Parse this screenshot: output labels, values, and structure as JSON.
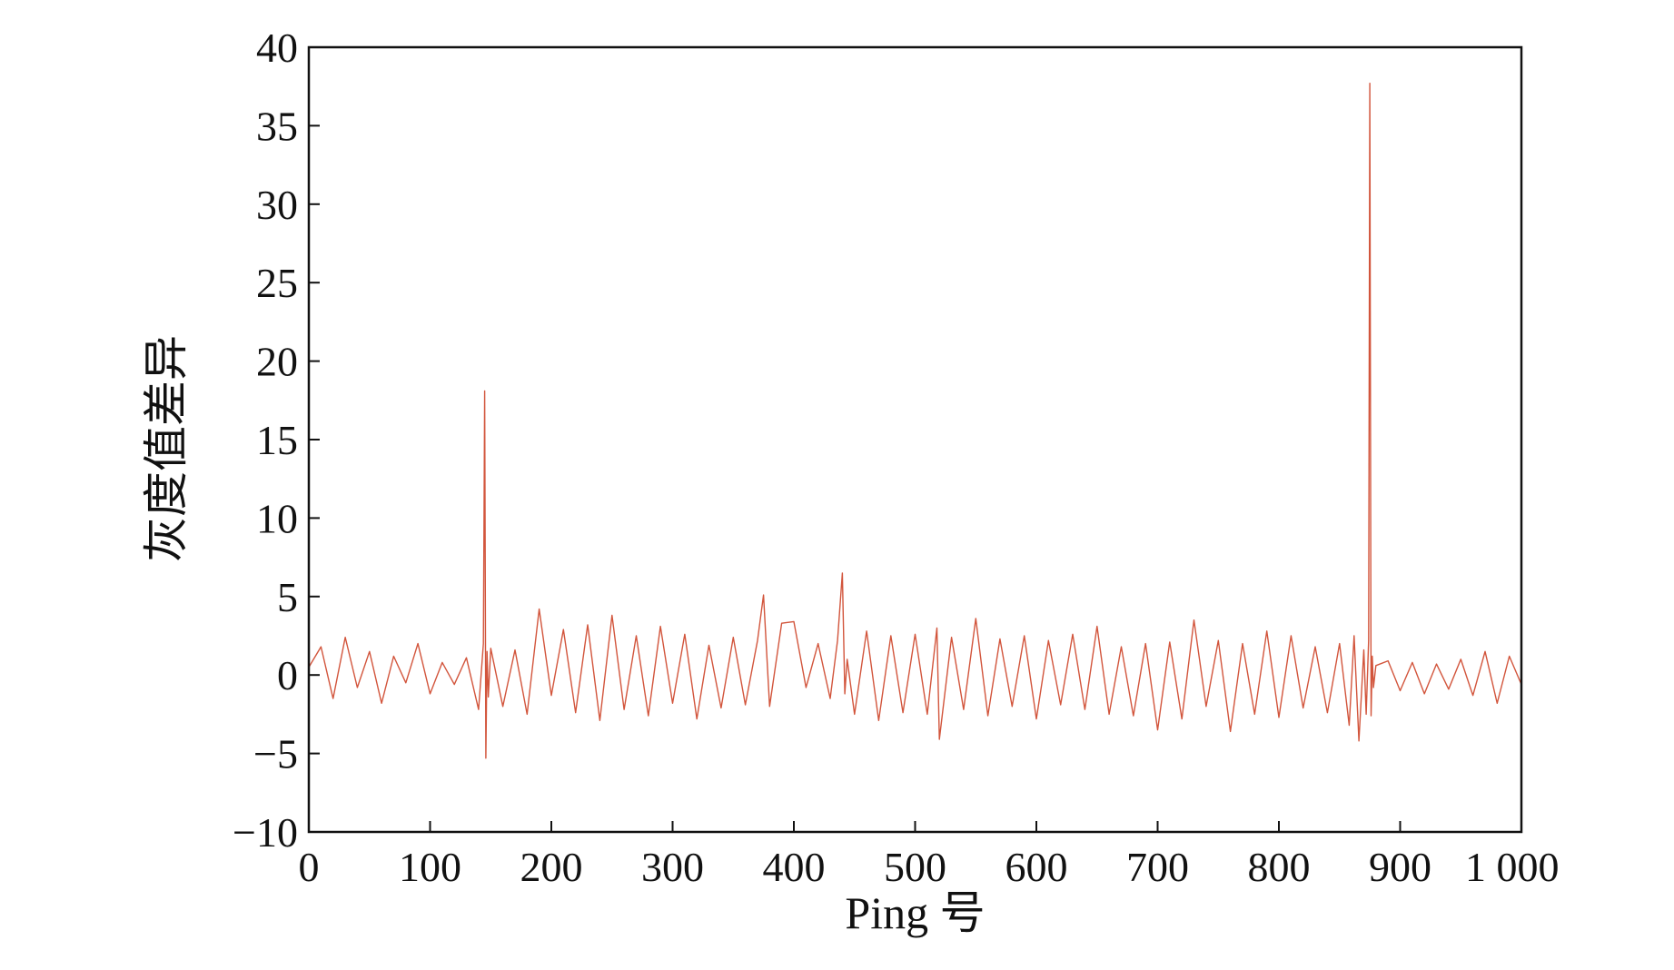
{
  "chart_data": {
    "type": "line",
    "xlabel": "Ping 号",
    "ylabel": "灰度值差异",
    "xlim": [
      0,
      1000
    ],
    "ylim": [
      -10,
      40
    ],
    "x_ticks": [
      0,
      100,
      200,
      300,
      400,
      500,
      600,
      700,
      800,
      900,
      1000
    ],
    "x_tick_labels": [
      "0",
      "100",
      "200",
      "300",
      "400",
      "500",
      "600",
      "700",
      "800",
      "900",
      "1 000"
    ],
    "y_ticks": [
      -10,
      -5,
      0,
      5,
      10,
      15,
      20,
      25,
      30,
      35,
      40
    ],
    "y_tick_labels": [
      "−10",
      "−5",
      "0",
      "5",
      "10",
      "15",
      "20",
      "25",
      "30",
      "35",
      "40"
    ],
    "grid": false,
    "legend": "none",
    "line_color": "#d2553c",
    "series": [
      {
        "x": [
          0,
          10,
          20,
          30,
          40,
          50,
          60,
          70,
          80,
          90,
          100,
          110,
          120,
          130,
          140,
          144,
          145,
          146,
          147,
          148,
          150,
          160,
          170,
          180,
          190,
          200,
          210,
          220,
          230,
          240,
          250,
          260,
          270,
          280,
          290,
          300,
          310,
          320,
          330,
          340,
          350,
          360,
          370,
          375,
          380,
          390,
          400,
          410,
          420,
          430,
          436,
          440,
          442,
          444,
          450,
          460,
          470,
          480,
          490,
          500,
          510,
          518,
          520,
          530,
          540,
          550,
          560,
          570,
          580,
          590,
          600,
          610,
          620,
          630,
          640,
          650,
          660,
          670,
          680,
          690,
          700,
          710,
          720,
          730,
          740,
          750,
          760,
          770,
          780,
          790,
          800,
          810,
          820,
          830,
          840,
          850,
          858,
          862,
          866,
          870,
          872,
          874,
          875,
          876,
          877,
          878,
          880,
          890,
          900,
          910,
          920,
          930,
          940,
          950,
          960,
          970,
          980,
          990,
          1000
        ],
        "y": [
          0.5,
          1.8,
          -1.5,
          2.4,
          -0.8,
          1.5,
          -1.8,
          1.2,
          -0.5,
          2.0,
          -1.2,
          0.8,
          -0.6,
          1.1,
          -2.2,
          2.0,
          18.1,
          -5.3,
          1.5,
          -1.4,
          1.7,
          -2.0,
          1.6,
          -2.5,
          4.2,
          -1.3,
          2.9,
          -2.4,
          3.2,
          -2.9,
          3.8,
          -2.2,
          2.5,
          -2.6,
          3.1,
          -1.8,
          2.6,
          -2.8,
          1.9,
          -2.1,
          2.4,
          -1.9,
          2.2,
          5.1,
          -2.0,
          3.3,
          3.4,
          -0.8,
          2.0,
          -1.5,
          2.2,
          6.5,
          -1.2,
          1.0,
          -2.5,
          2.8,
          -2.9,
          2.5,
          -2.4,
          2.6,
          -2.5,
          3.0,
          -4.1,
          2.4,
          -2.2,
          3.6,
          -2.6,
          2.3,
          -2.0,
          2.5,
          -2.8,
          2.2,
          -1.9,
          2.6,
          -2.2,
          3.1,
          -2.5,
          1.8,
          -2.6,
          2.0,
          -3.5,
          2.1,
          -2.8,
          3.5,
          -2.0,
          2.2,
          -3.6,
          2.0,
          -2.5,
          2.8,
          -2.7,
          2.5,
          -2.1,
          1.8,
          -2.4,
          2.0,
          -3.2,
          2.5,
          -4.2,
          1.6,
          -2.5,
          2.2,
          37.7,
          -2.6,
          1.2,
          -0.8,
          0.6,
          0.9,
          -1.0,
          0.8,
          -1.2,
          0.7,
          -0.9,
          1.0,
          -1.3,
          1.5,
          -1.8,
          1.2,
          -0.6
        ]
      }
    ]
  }
}
